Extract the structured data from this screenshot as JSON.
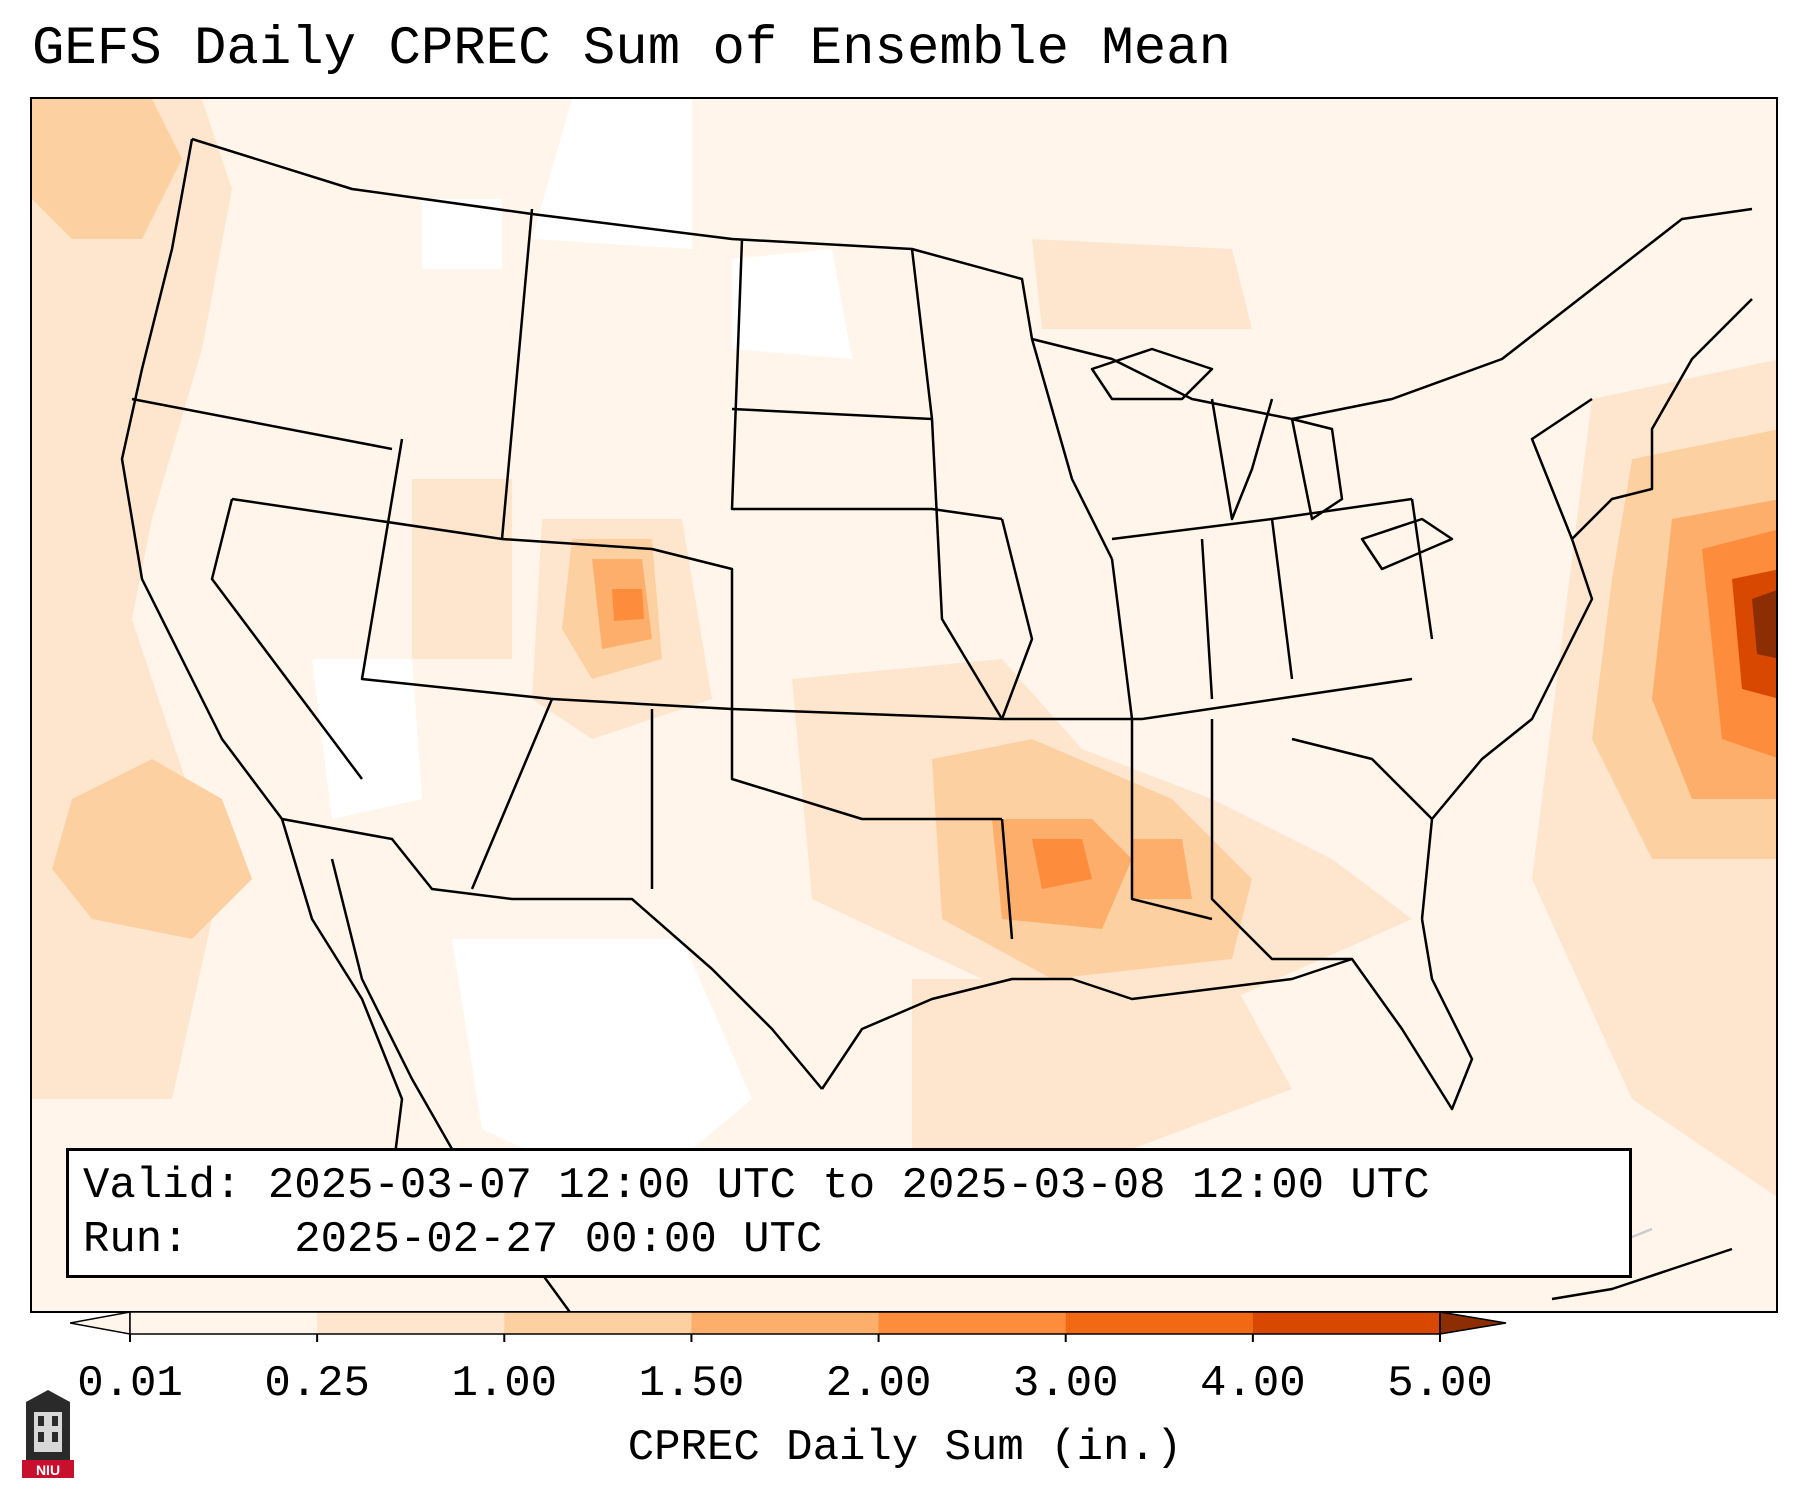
{
  "title": "GEFS Daily CPREC Sum of Ensemble Mean",
  "info_box": {
    "valid_label": "Valid:",
    "valid_value": "2025-03-07 12:00 UTC to 2025-03-08 12:00 UTC",
    "run_label": "Run:",
    "run_value": "2025-02-27 00:00 UTC"
  },
  "colorbar": {
    "label": "CPREC Daily Sum (in.)",
    "ticks": [
      "0.01",
      "0.25",
      "1.00",
      "1.50",
      "2.00",
      "3.00",
      "4.00",
      "5.00"
    ],
    "colors": [
      "#fff5eb",
      "#fee6ce",
      "#fdd0a2",
      "#fdae6b",
      "#fd8d3c",
      "#f16913",
      "#d94801",
      "#8c2d04"
    ],
    "extend": "both"
  },
  "logo": {
    "text": "NIU",
    "icon": "university-tower-logo"
  },
  "map": {
    "projection": "conus",
    "overlay": "state-and-coastline-boundaries",
    "precip_regions": [
      {
        "region": "Atlantic offshore Mid-Atlantic",
        "level": "5.00"
      },
      {
        "region": "Arkansas / Louisiana / Mississippi",
        "level": "1.50"
      },
      {
        "region": "Colorado Rockies",
        "level": "1.00"
      },
      {
        "region": "Pacific Northwest coast",
        "level": "0.25"
      }
    ]
  }
}
